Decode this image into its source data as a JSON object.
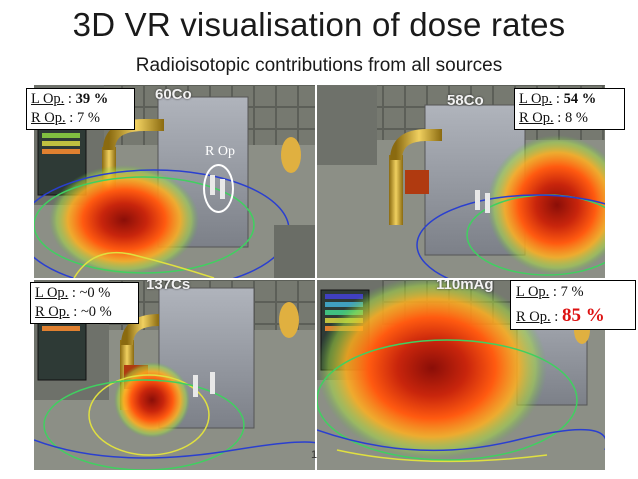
{
  "title": "3D VR visualisation of dose rates",
  "subtitle": "Radioisotopic contributions from  all  sources",
  "panels": {
    "tl": {
      "isotope": "60Co",
      "l_label": "L Op.",
      "l_sep": " : ",
      "l_val": "39 %",
      "r_label": "R Op.",
      "r_sep": " : ",
      "r_val": "7 %"
    },
    "tr": {
      "isotope": "58Co",
      "l_label": "L Op.",
      "l_sep": " : ",
      "l_val": "54 %",
      "r_label": "R Op.",
      "r_sep": " : ",
      "r_val": "8 %"
    },
    "bl": {
      "isotope": "137Cs",
      "l_label": "L Op.",
      "l_sep": " : ",
      "l_val": "~0 %",
      "r_label": "R Op.",
      "r_sep": " : ",
      "r_val": "~0 %"
    },
    "br": {
      "isotope": "110mAg",
      "l_label": "L Op.",
      "l_sep": " : ",
      "l_val": "7 %",
      "r_label": "R Op.",
      "r_sep": " : ",
      "r_val": "85 %"
    }
  },
  "annotation": "R Op",
  "page_number": "1",
  "colors": {
    "hotspot_core": "#c0200c",
    "hotspot_mid": "#ff6a10",
    "hotspot_outer": "#9fe040",
    "contour_blue": "#2a3fd0",
    "floor": "#8c8f86"
  }
}
